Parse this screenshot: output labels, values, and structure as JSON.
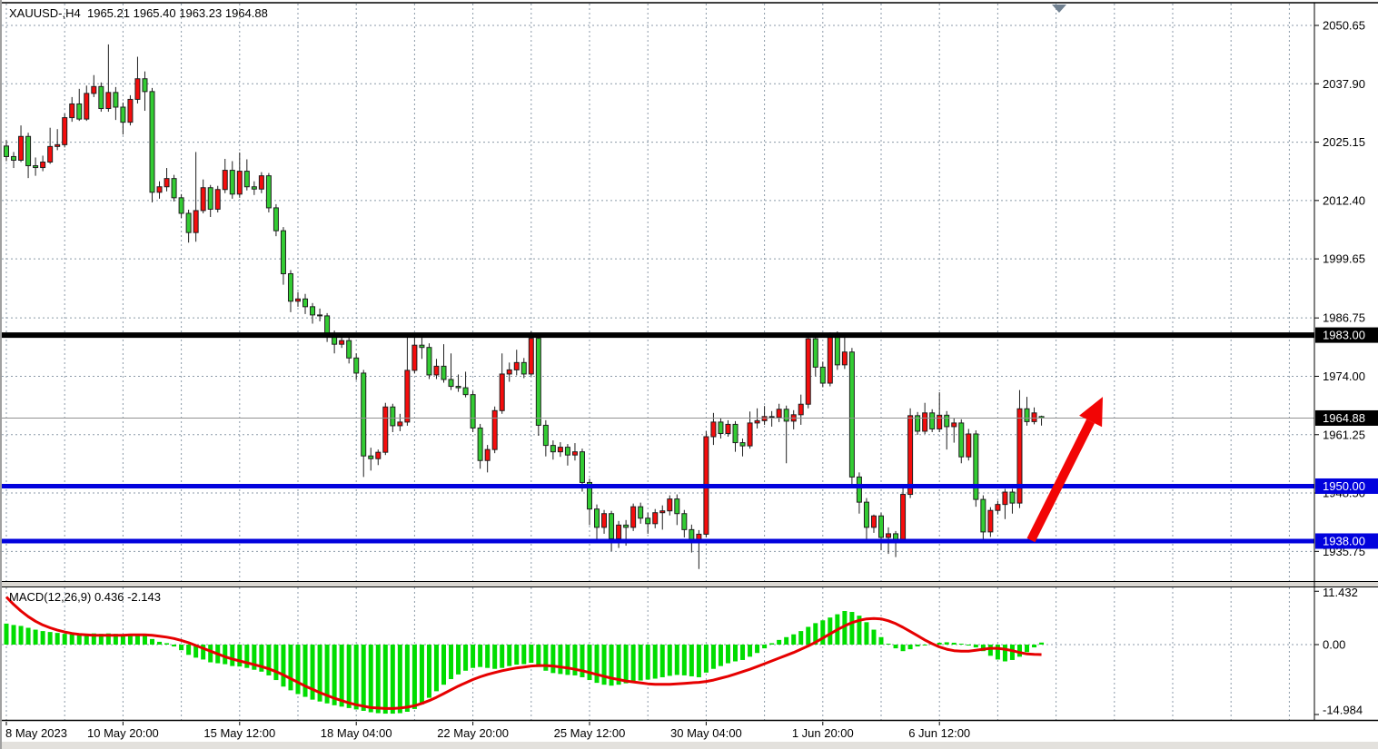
{
  "title": {
    "symbol_period": "XAUUSD-,H4",
    "open": "1965.21",
    "high": "1965.40",
    "low": "1963.23",
    "close": "1964.88"
  },
  "chart_data": {
    "type": "candlestick",
    "symbol": "XAUUSD-",
    "timeframe": "H4",
    "legend_position": "none",
    "grid": "dotted",
    "price_axis": {
      "tick_labels": [
        "2050.65",
        "2037.90",
        "2025.15",
        "2012.40",
        "1999.65",
        "1986.75",
        "1974.00",
        "1961.25",
        "1948.50",
        "1935.75"
      ],
      "tick_values": [
        2050.65,
        2037.9,
        2025.15,
        2012.4,
        1999.65,
        1986.75,
        1974.0,
        1961.25,
        1948.5,
        1935.75
      ],
      "visible_range": [
        1929.5,
        2055.5
      ],
      "boxed_labels": [
        {
          "text": "1983.00",
          "value": 1983.0,
          "bg": "#000000",
          "fg": "#ffffff"
        },
        {
          "text": "1964.88",
          "value": 1964.88,
          "bg": "#000000",
          "fg": "#ffffff"
        },
        {
          "text": "1950.00",
          "value": 1950.0,
          "bg": "#0202dd",
          "fg": "#ffffff"
        },
        {
          "text": "1938.00",
          "value": 1938.0,
          "bg": "#0202dd",
          "fg": "#ffffff"
        }
      ]
    },
    "time_axis": {
      "labels": [
        {
          "index": 0,
          "text": "8 May 2023"
        },
        {
          "index": 16,
          "text": "10 May 20:00"
        },
        {
          "index": 32,
          "text": "15 May 12:00"
        },
        {
          "index": 48,
          "text": "18 May 04:00"
        },
        {
          "index": 64,
          "text": "22 May 20:00"
        },
        {
          "index": 80,
          "text": "25 May 12:00"
        },
        {
          "index": 96,
          "text": "30 May 04:00"
        },
        {
          "index": 112,
          "text": "1 Jun 20:00"
        },
        {
          "index": 128,
          "text": "6 Jun 12:00"
        }
      ]
    },
    "colors": {
      "bull_body": "#f50d0d",
      "bear_body": "#33cc33",
      "body_border": "#1f1f1f",
      "wick": "#1f1f1f",
      "grid": "#8b9aa8",
      "support": "#0202dd",
      "resistance": "#000000",
      "current_price_line": "#909090",
      "arrow": "#f20505",
      "macd_hist": "#00dd00",
      "macd_signal": "#e60000",
      "shift_marker": "#708090"
    },
    "note": "bullish candles are red, bearish candles are green (inverted color scheme)",
    "candles": [
      [
        2024.3,
        2025.6,
        2021.0,
        2022.0
      ],
      [
        2022.0,
        2023.0,
        2019.5,
        2021.2
      ],
      [
        2021.2,
        2028.8,
        2020.8,
        2026.4
      ],
      [
        2026.4,
        2027.2,
        2017.3,
        2020.0
      ],
      [
        2020.0,
        2021.8,
        2017.8,
        2019.6
      ],
      [
        2019.6,
        2022.2,
        2018.8,
        2020.8
      ],
      [
        2020.8,
        2028.3,
        2020.4,
        2024.2
      ],
      [
        2024.2,
        2028.0,
        2023.4,
        2024.6
      ],
      [
        2024.6,
        2031.4,
        2024.0,
        2030.5
      ],
      [
        2030.5,
        2035.0,
        2029.6,
        2033.5
      ],
      [
        2033.5,
        2036.8,
        2029.8,
        2030.2
      ],
      [
        2030.2,
        2037.5,
        2029.8,
        2035.8
      ],
      [
        2035.8,
        2039.8,
        2035.0,
        2037.3
      ],
      [
        2037.3,
        2038.2,
        2031.8,
        2032.5
      ],
      [
        2032.5,
        2046.5,
        2031.8,
        2036.0
      ],
      [
        2036.0,
        2037.2,
        2030.0,
        2032.8
      ],
      [
        2032.8,
        2033.8,
        2026.8,
        2029.5
      ],
      [
        2029.5,
        2035.4,
        2028.8,
        2034.5
      ],
      [
        2034.5,
        2043.8,
        2033.6,
        2039.0
      ],
      [
        2039.0,
        2040.6,
        2032.0,
        2036.2
      ],
      [
        2036.2,
        2037.0,
        2012.0,
        2014.2
      ],
      [
        2014.2,
        2016.6,
        2012.8,
        2015.4
      ],
      [
        2015.4,
        2019.5,
        2014.4,
        2017.2
      ],
      [
        2017.2,
        2018.0,
        2012.2,
        2013.0
      ],
      [
        2013.0,
        2013.8,
        2008.6,
        2009.6
      ],
      [
        2009.6,
        2010.4,
        2003.2,
        2005.4
      ],
      [
        2005.4,
        2023.0,
        2003.4,
        2010.2
      ],
      [
        2010.2,
        2017.0,
        2009.6,
        2015.2
      ],
      [
        2015.2,
        2015.8,
        2008.8,
        2010.5
      ],
      [
        2010.5,
        2015.6,
        2009.8,
        2014.8
      ],
      [
        2014.8,
        2021.5,
        2014.0,
        2019.0
      ],
      [
        2019.0,
        2021.0,
        2012.8,
        2013.8
      ],
      [
        2013.8,
        2022.9,
        2013.0,
        2018.8
      ],
      [
        2018.8,
        2021.4,
        2014.6,
        2015.4
      ],
      [
        2015.4,
        2016.6,
        2013.6,
        2014.9
      ],
      [
        2014.9,
        2018.6,
        2014.0,
        2017.8
      ],
      [
        2017.8,
        2018.4,
        2009.8,
        2010.8
      ],
      [
        2010.8,
        2011.6,
        2004.6,
        2005.8
      ],
      [
        2005.8,
        2006.6,
        1994.0,
        1996.4
      ],
      [
        1996.4,
        1997.2,
        1988.0,
        1990.4
      ],
      [
        1990.4,
        1992.4,
        1989.2,
        1990.9
      ],
      [
        1990.9,
        1992.0,
        1987.6,
        1989.2
      ],
      [
        1989.2,
        1990.0,
        1985.5,
        1987.4
      ],
      [
        1987.4,
        1988.8,
        1986.0,
        1987.2
      ],
      [
        1987.2,
        1987.8,
        1981.5,
        1983.0
      ],
      [
        1983.0,
        1984.0,
        1979.0,
        1981.0
      ],
      [
        1981.0,
        1983.4,
        1980.2,
        1981.8
      ],
      [
        1981.8,
        1982.6,
        1976.8,
        1978.0
      ],
      [
        1978.0,
        1979.0,
        1973.2,
        1974.7
      ],
      [
        1974.7,
        1975.4,
        1952.0,
        1956.6
      ],
      [
        1956.6,
        1958.4,
        1953.4,
        1956.0
      ],
      [
        1956.0,
        1958.0,
        1954.6,
        1957.4
      ],
      [
        1957.4,
        1968.2,
        1956.8,
        1967.3
      ],
      [
        1967.3,
        1968.0,
        1961.8,
        1963.2
      ],
      [
        1963.2,
        1965.8,
        1962.0,
        1964.0
      ],
      [
        1964.0,
        1983.5,
        1963.2,
        1975.3
      ],
      [
        1975.3,
        1983.2,
        1974.6,
        1980.8
      ],
      [
        1980.8,
        1982.5,
        1977.8,
        1980.3
      ],
      [
        1980.3,
        1981.2,
        1973.4,
        1974.3
      ],
      [
        1974.3,
        1977.8,
        1973.4,
        1976.2
      ],
      [
        1976.2,
        1981.0,
        1972.6,
        1973.3
      ],
      [
        1973.3,
        1979.0,
        1971.0,
        1971.8
      ],
      [
        1971.8,
        1974.4,
        1970.6,
        1971.5
      ],
      [
        1971.5,
        1975.0,
        1969.4,
        1970.0
      ],
      [
        1970.0,
        1970.8,
        1961.8,
        1962.7
      ],
      [
        1962.7,
        1963.6,
        1953.8,
        1955.6
      ],
      [
        1955.6,
        1959.0,
        1953.0,
        1958.0
      ],
      [
        1958.0,
        1967.4,
        1957.2,
        1966.5
      ],
      [
        1966.5,
        1979.0,
        1965.8,
        1974.5
      ],
      [
        1974.5,
        1977.0,
        1972.8,
        1975.4
      ],
      [
        1975.4,
        1979.8,
        1974.2,
        1977.0
      ],
      [
        1977.0,
        1978.0,
        1973.6,
        1974.5
      ],
      [
        1974.5,
        1983.8,
        1974.0,
        1982.3
      ],
      [
        1982.3,
        1983.0,
        1961.0,
        1963.3
      ],
      [
        1963.3,
        1964.4,
        1956.5,
        1958.9
      ],
      [
        1958.9,
        1960.0,
        1955.8,
        1957.5
      ],
      [
        1957.5,
        1959.6,
        1956.4,
        1958.5
      ],
      [
        1958.5,
        1959.2,
        1954.5,
        1956.8
      ],
      [
        1956.8,
        1959.4,
        1955.6,
        1957.5
      ],
      [
        1957.5,
        1958.2,
        1948.8,
        1950.8
      ],
      [
        1950.8,
        1951.6,
        1941.5,
        1945.0
      ],
      [
        1945.0,
        1946.0,
        1937.5,
        1941.0
      ],
      [
        1941.0,
        1944.8,
        1939.6,
        1944.0
      ],
      [
        1944.0,
        1944.6,
        1935.8,
        1938.5
      ],
      [
        1938.5,
        1942.4,
        1936.5,
        1941.5
      ],
      [
        1941.5,
        1942.6,
        1937.0,
        1941.0
      ],
      [
        1941.0,
        1946.2,
        1940.2,
        1945.5
      ],
      [
        1945.5,
        1946.4,
        1941.8,
        1943.0
      ],
      [
        1943.0,
        1944.2,
        1939.6,
        1941.8
      ],
      [
        1941.8,
        1945.0,
        1940.8,
        1944.2
      ],
      [
        1944.2,
        1945.8,
        1940.5,
        1944.6
      ],
      [
        1944.6,
        1948.0,
        1943.6,
        1947.2
      ],
      [
        1947.2,
        1948.2,
        1941.5,
        1944.0
      ],
      [
        1944.0,
        1944.8,
        1938.8,
        1940.5
      ],
      [
        1940.5,
        1941.6,
        1935.5,
        1938.0
      ],
      [
        1938.0,
        1940.4,
        1931.9,
        1939.5
      ],
      [
        1939.5,
        1962.0,
        1938.8,
        1960.8
      ],
      [
        1960.8,
        1966.0,
        1959.0,
        1964.0
      ],
      [
        1964.0,
        1964.8,
        1960.4,
        1961.5
      ],
      [
        1961.5,
        1964.4,
        1960.8,
        1963.5
      ],
      [
        1963.5,
        1964.2,
        1957.5,
        1959.5
      ],
      [
        1959.5,
        1960.4,
        1956.5,
        1958.8
      ],
      [
        1958.8,
        1966.3,
        1958.2,
        1963.8
      ],
      [
        1963.8,
        1967.0,
        1962.6,
        1964.3
      ],
      [
        1964.3,
        1967.5,
        1963.4,
        1965.2
      ],
      [
        1965.2,
        1966.4,
        1963.0,
        1965.0
      ],
      [
        1965.0,
        1968.0,
        1964.0,
        1966.8
      ],
      [
        1966.8,
        1967.6,
        1955.0,
        1964.2
      ],
      [
        1964.2,
        1966.6,
        1962.4,
        1965.6
      ],
      [
        1965.6,
        1970.0,
        1963.4,
        1967.9
      ],
      [
        1967.9,
        1983.4,
        1967.0,
        1982.2
      ],
      [
        1982.2,
        1983.0,
        1974.0,
        1976.0
      ],
      [
        1976.0,
        1977.2,
        1971.6,
        1972.5
      ],
      [
        1972.5,
        1983.6,
        1971.8,
        1982.5
      ],
      [
        1982.5,
        1983.8,
        1975.4,
        1976.5
      ],
      [
        1976.5,
        1983.0,
        1975.6,
        1979.3
      ],
      [
        1979.3,
        1980.2,
        1950.5,
        1952.0
      ],
      [
        1952.0,
        1953.0,
        1944.0,
        1946.5
      ],
      [
        1946.5,
        1947.4,
        1938.5,
        1941.0
      ],
      [
        1941.0,
        1943.8,
        1939.8,
        1943.5
      ],
      [
        1943.5,
        1944.2,
        1936.0,
        1938.8
      ],
      [
        1938.8,
        1941.0,
        1935.2,
        1939.6
      ],
      [
        1939.6,
        1940.2,
        1934.5,
        1938.2
      ],
      [
        1938.2,
        1949.5,
        1937.6,
        1948.2
      ],
      [
        1948.2,
        1967.0,
        1947.4,
        1965.4
      ],
      [
        1965.4,
        1966.2,
        1961.2,
        1962.0
      ],
      [
        1962.0,
        1968.2,
        1961.4,
        1966.0
      ],
      [
        1966.0,
        1966.8,
        1961.8,
        1962.5
      ],
      [
        1962.5,
        1970.5,
        1961.8,
        1965.5
      ],
      [
        1965.5,
        1966.4,
        1958.0,
        1963.0
      ],
      [
        1963.0,
        1964.8,
        1959.5,
        1963.8
      ],
      [
        1963.8,
        1964.6,
        1955.0,
        1956.4
      ],
      [
        1956.4,
        1962.5,
        1955.6,
        1961.4
      ],
      [
        1961.4,
        1962.2,
        1945.5,
        1947.1
      ],
      [
        1947.1,
        1948.0,
        1938.3,
        1940.0
      ],
      [
        1940.0,
        1945.4,
        1938.9,
        1944.7
      ],
      [
        1944.7,
        1946.8,
        1943.8,
        1946.0
      ],
      [
        1946.0,
        1949.4,
        1942.8,
        1948.7
      ],
      [
        1948.7,
        1949.4,
        1944.0,
        1946.3
      ],
      [
        1946.3,
        1971.0,
        1945.2,
        1966.9
      ],
      [
        1966.9,
        1969.5,
        1963.2,
        1964.1
      ],
      [
        1964.1,
        1967.2,
        1963.5,
        1966.0
      ],
      [
        1965.21,
        1965.4,
        1963.23,
        1964.88
      ]
    ],
    "horizontal_lines": [
      {
        "price": 1983.0,
        "color": "#000000",
        "width": 6,
        "role": "resistance"
      },
      {
        "price": 1950.0,
        "color": "#0202dd",
        "width": 5,
        "role": "support"
      },
      {
        "price": 1938.0,
        "color": "#0202dd",
        "width": 5,
        "role": "support"
      }
    ],
    "current_price": 1964.88,
    "arrow": {
      "from_price_x": 1133,
      "from_price": 1938.2,
      "to_price_x": 1212,
      "to_price": 1969.5
    },
    "macd": {
      "label": "MACD(12,26,9)",
      "values_text": "0.436 -2.143",
      "main_value": 0.436,
      "signal_value": -2.143,
      "axis_labels": [
        "11.432",
        "0.00",
        "-14.984"
      ],
      "axis_values": [
        11.432,
        0.0,
        -14.984
      ],
      "histogram": [
        4.5,
        4.2,
        4.0,
        3.6,
        3.2,
        2.9,
        2.7,
        2.5,
        2.3,
        2.2,
        2.2,
        2.3,
        2.4,
        2.3,
        2.4,
        2.3,
        2.1,
        2.1,
        2.2,
        1.9,
        1.2,
        0.6,
        0.3,
        -0.4,
        -1.2,
        -2.2,
        -2.8,
        -3.2,
        -3.8,
        -4.0,
        -4.2,
        -4.6,
        -4.7,
        -5.0,
        -5.4,
        -5.8,
        -6.6,
        -7.6,
        -9.0,
        -9.8,
        -10.6,
        -11.2,
        -11.8,
        -12.2,
        -12.6,
        -13.0,
        -13.3,
        -13.6,
        -13.9,
        -14.2,
        -14.5,
        -14.7,
        -14.8,
        -14.8,
        -14.7,
        -14.4,
        -13.8,
        -12.8,
        -11.4,
        -10.0,
        -8.6,
        -7.4,
        -6.4,
        -5.6,
        -5.0,
        -4.8,
        -5.0,
        -5.2,
        -5.0,
        -4.6,
        -4.3,
        -4.2,
        -3.9,
        -4.8,
        -5.6,
        -6.1,
        -6.3,
        -6.5,
        -6.6,
        -7.0,
        -7.6,
        -8.2,
        -8.6,
        -8.8,
        -8.6,
        -8.3,
        -8.0,
        -7.7,
        -7.5,
        -7.3,
        -7.0,
        -6.7,
        -6.5,
        -6.6,
        -6.8,
        -7.0,
        -6.0,
        -5.2,
        -4.6,
        -4.0,
        -3.6,
        -3.3,
        -2.6,
        -1.8,
        -0.8,
        0.3,
        1.0,
        1.6,
        2.2,
        2.9,
        3.8,
        4.6,
        5.2,
        5.8,
        6.5,
        7.2,
        7.0,
        6.2,
        4.8,
        3.2,
        1.6,
        0.2,
        -0.8,
        -1.4,
        -1.0,
        -0.4,
        -0.1,
        0.2,
        0.4,
        0.5,
        0.4,
        0.2,
        -0.2,
        -0.6,
        -1.4,
        -2.4,
        -3.2,
        -3.6,
        -3.3,
        -2.6,
        -1.6,
        -0.6,
        0.436
      ],
      "signal": [
        10.2,
        8.6,
        7.2,
        6.0,
        5.0,
        4.2,
        3.6,
        3.1,
        2.7,
        2.4,
        2.2,
        2.1,
        2.0,
        2.0,
        2.0,
        2.0,
        2.0,
        2.1,
        2.1,
        2.1,
        2.0,
        1.8,
        1.6,
        1.3,
        0.9,
        0.4,
        -0.2,
        -0.8,
        -1.4,
        -2.0,
        -2.6,
        -3.1,
        -3.5,
        -3.9,
        -4.3,
        -4.7,
        -5.2,
        -5.8,
        -6.5,
        -7.3,
        -8.1,
        -8.9,
        -9.6,
        -10.3,
        -10.9,
        -11.5,
        -12.0,
        -12.5,
        -12.9,
        -13.2,
        -13.5,
        -13.6,
        -13.7,
        -13.7,
        -13.6,
        -13.4,
        -13.1,
        -12.6,
        -12.0,
        -11.3,
        -10.5,
        -9.7,
        -8.9,
        -8.2,
        -7.5,
        -6.9,
        -6.4,
        -6.0,
        -5.6,
        -5.3,
        -5.0,
        -4.8,
        -4.6,
        -4.5,
        -4.5,
        -4.6,
        -4.8,
        -5.0,
        -5.3,
        -5.6,
        -6.0,
        -6.4,
        -6.8,
        -7.2,
        -7.5,
        -7.8,
        -8.0,
        -8.2,
        -8.4,
        -8.5,
        -8.5,
        -8.5,
        -8.4,
        -8.3,
        -8.2,
        -8.1,
        -7.9,
        -7.6,
        -7.2,
        -6.8,
        -6.3,
        -5.8,
        -5.3,
        -4.7,
        -4.1,
        -3.5,
        -2.9,
        -2.3,
        -1.7,
        -1.0,
        -0.3,
        0.5,
        1.4,
        2.3,
        3.2,
        4.0,
        4.7,
        5.2,
        5.5,
        5.6,
        5.5,
        5.1,
        4.5,
        3.7,
        2.8,
        1.9,
        1.0,
        0.2,
        -0.5,
        -1.0,
        -1.3,
        -1.4,
        -1.4,
        -1.2,
        -1.0,
        -0.8,
        -0.8,
        -1.0,
        -1.3,
        -1.7,
        -2.0,
        -2.1,
        -2.143
      ]
    }
  }
}
